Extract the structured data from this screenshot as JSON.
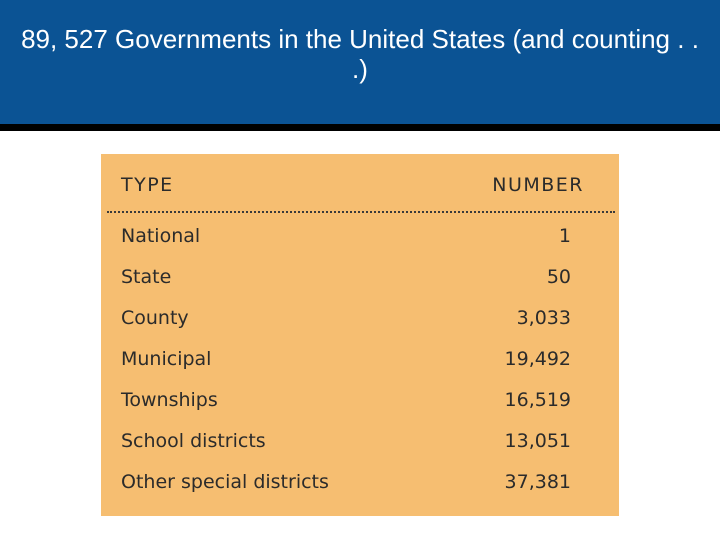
{
  "slide": {
    "title": "89, 527 Governments in the United States (and counting . . .)"
  },
  "table": {
    "columns": [
      "TYPE",
      "NUMBER"
    ],
    "rows": [
      {
        "type": "National",
        "number": "1"
      },
      {
        "type": "State",
        "number": "50"
      },
      {
        "type": "County",
        "number": "3,033"
      },
      {
        "type": "Municipal",
        "number": "19,492"
      },
      {
        "type": "Townships",
        "number": "16,519"
      },
      {
        "type": "School districts",
        "number": "13,051"
      },
      {
        "type": "Other special districts",
        "number": "37,381"
      }
    ]
  },
  "colors": {
    "title_band": "#0b5394",
    "table_background": "#f6be71",
    "text": "#2b2b2b"
  }
}
